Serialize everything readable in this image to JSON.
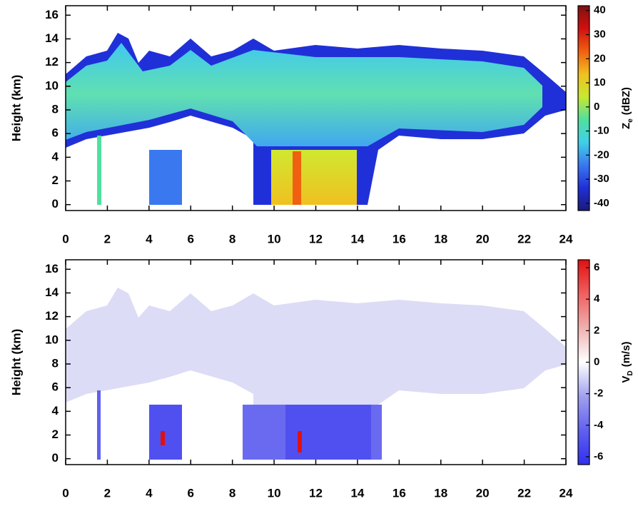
{
  "chart_data": [
    {
      "type": "heatmap",
      "ylabel": "Height (km)",
      "xlim": [
        0,
        24
      ],
      "xticks": [
        0,
        2,
        4,
        6,
        8,
        10,
        12,
        14,
        16,
        18,
        20,
        22,
        24
      ],
      "ylim": [
        -0.5,
        16.8
      ],
      "yticks": [
        0,
        2,
        4,
        6,
        8,
        10,
        12,
        14,
        16
      ],
      "colorbar": {
        "label": "Z",
        "label_sub": "e",
        "label_unit": "(dBZ)",
        "lim": [
          -43,
          42
        ],
        "ticks": [
          -40,
          -30,
          -20,
          -10,
          0,
          10,
          20,
          30,
          40
        ],
        "colors": [
          "#1a1a7a",
          "#2030d8",
          "#3a78f0",
          "#40d0e8",
          "#50e0a0",
          "#c8e830",
          "#f0c020",
          "#f06010",
          "#d01010",
          "#801010"
        ]
      }
    },
    {
      "type": "heatmap",
      "ylabel": "Height (km)",
      "xlim": [
        0,
        24
      ],
      "xticks": [
        0,
        2,
        4,
        6,
        8,
        10,
        12,
        14,
        16,
        18,
        20,
        22,
        24
      ],
      "ylim": [
        -0.5,
        16.8
      ],
      "yticks": [
        0,
        2,
        4,
        6,
        8,
        10,
        12,
        14,
        16
      ],
      "colorbar": {
        "label": "V",
        "label_sub": "D",
        "label_unit": "(m/s)",
        "lim": [
          -6.5,
          6.5
        ],
        "ticks": [
          -6,
          -4,
          -2,
          0,
          2,
          4,
          6
        ],
        "colors": [
          "#3030f0",
          "#6060f0",
          "#a0a0f0",
          "#ffffff",
          "#f0b0b0",
          "#f06060",
          "#e01010"
        ]
      }
    }
  ]
}
